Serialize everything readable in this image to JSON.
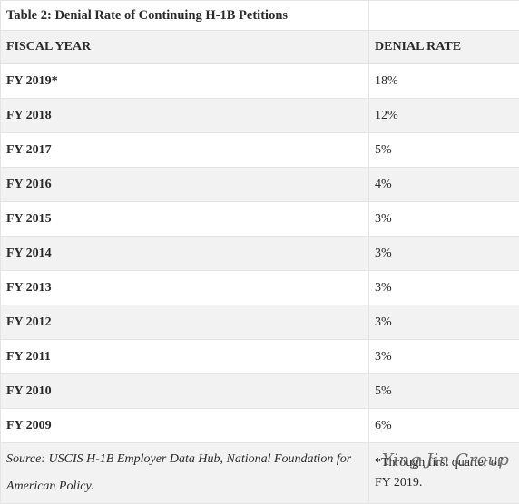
{
  "title": "Table 2: Denial Rate of Continuing H-1B Petitions",
  "headers": [
    "FISCAL YEAR",
    "DENIAL RATE"
  ],
  "rows": [
    [
      "FY 2019*",
      "18%"
    ],
    [
      "FY 2018",
      "12%"
    ],
    [
      "FY 2017",
      "5%"
    ],
    [
      "FY 2016",
      "4%"
    ],
    [
      "FY 2015",
      "3%"
    ],
    [
      "FY 2014",
      "3%"
    ],
    [
      "FY 2013",
      "3%"
    ],
    [
      "FY 2012",
      "3%"
    ],
    [
      "FY 2011",
      "3%"
    ],
    [
      "FY 2010",
      "5%"
    ],
    [
      "FY 2009",
      "6%"
    ]
  ],
  "footer": {
    "source": "Source: USCIS H-1B Employer Data Hub, National Foundation for American Policy.",
    "note": "*Through first quarter of FY 2019."
  },
  "watermark": "Ying Jin Group"
}
